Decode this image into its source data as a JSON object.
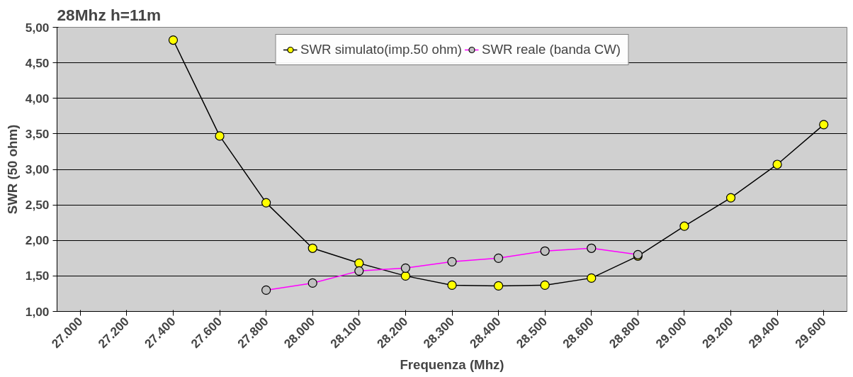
{
  "chart_data": {
    "type": "line",
    "title": "28Mhz h=11m",
    "xlabel": "Frequenza (Mhz)",
    "ylabel": "SWR (50 ohm)",
    "categories": [
      "27.000",
      "27.200",
      "27.400",
      "27.600",
      "27.800",
      "28.000",
      "28.100",
      "28.200",
      "28.300",
      "28.400",
      "28.500",
      "28.600",
      "28.800",
      "29.000",
      "29.200",
      "29.400",
      "29.600"
    ],
    "series": [
      {
        "name": "SWR simulato(imp.50 ohm)",
        "color": "#000000",
        "values": [
          null,
          null,
          4.82,
          3.47,
          2.53,
          1.89,
          1.68,
          1.5,
          1.37,
          1.36,
          1.37,
          1.47,
          1.78,
          2.2,
          2.6,
          3.07,
          3.63
        ]
      },
      {
        "name": "SWR reale (banda CW)",
        "color": "#ff00ff",
        "values": [
          null,
          null,
          null,
          null,
          1.3,
          1.4,
          1.57,
          1.61,
          1.7,
          1.75,
          1.85,
          1.89,
          1.8,
          null,
          null,
          null,
          null
        ]
      }
    ],
    "ylim": [
      1,
      5
    ],
    "yticks": [
      {
        "value": 1,
        "label": "1,00"
      },
      {
        "value": 1.5,
        "label": "1,50"
      },
      {
        "value": 2,
        "label": "2,00"
      },
      {
        "value": 2.5,
        "label": "2,50"
      },
      {
        "value": 3,
        "label": "3,00"
      },
      {
        "value": 3.5,
        "label": "3,50"
      },
      {
        "value": 4,
        "label": "4,00"
      },
      {
        "value": 4.5,
        "label": "4,50"
      },
      {
        "value": 5,
        "label": "5,00"
      }
    ],
    "grid": "y",
    "legend": "top",
    "marker": "circle",
    "line_style": "solid"
  }
}
